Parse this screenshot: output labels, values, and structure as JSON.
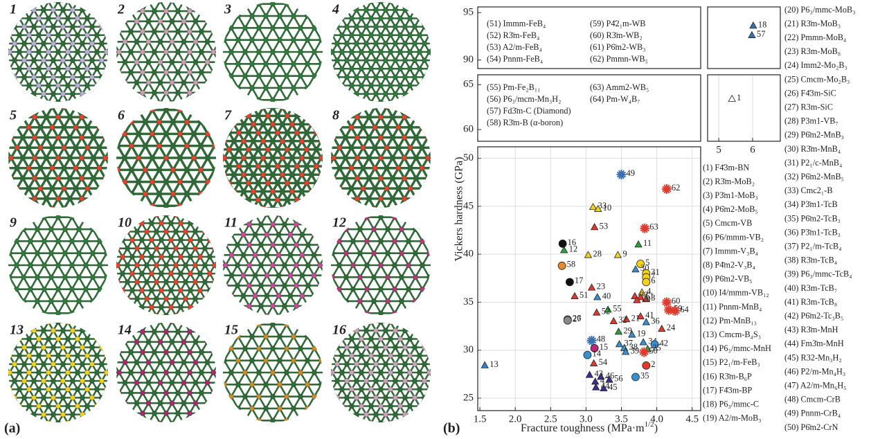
{
  "panel_labels": [
    "(a)",
    "(b)"
  ],
  "structures": [
    "1",
    "2",
    "3",
    "4",
    "5",
    "6",
    "7",
    "8",
    "9",
    "10",
    "11",
    "12",
    "13",
    "14",
    "15",
    "16"
  ],
  "structure_names": [
    "(1) F4̄3m-BN",
    "(2) R3̄m-MoB₂",
    "(3) P3̄m1-MoB₃",
    "(4) P6̄m2-MoB₅",
    "(5) Cmcm-VB",
    "(6) P6/mmm-VB₂",
    "(7) Immm-V₃B₄",
    "(8) P4̄m2-V₃B₄",
    "(9) P6̄m2-VB₅",
    "(10) I4/mmm-VB₁₂",
    "(11) Pnnm-MnB₄",
    "(12) Pm-MnB₁₃",
    "(13) Cmcm-B₄S₃",
    "(14) P6₃/mmc-MnH",
    "(15) P2₁/m-FeB₃",
    "(16) R3̄m-B₆P",
    "(17) F4̄3m-BP",
    "(18) P6₃/mmc-C",
    "(19) A2/m-MoB₃",
    "(20) P6₃/mmc-MoB₃",
    "(21) R3̄m-MoB₃",
    "(22) Pmmn-MoB₄",
    "(23) R3m-MoB₈",
    "(24) Imm2-Mo₂B₃",
    "(25) Cmcm-Mo₂B₃",
    "(26) F4̄3m-SiC",
    "(27) R3m-SiC",
    "(28) P3m1-VB₇",
    "(29) P6̄m2-MnB₃",
    "(30) R3̄m-MnB₄",
    "(31) P2₁/c-MnB₄",
    "(32) P6̄m2-MnB₅",
    "(33) Cmc2₁-B",
    "(34) P3̄m1-TcB",
    "(35) P6̄m2-TcB₃",
    "(36) P3̄m1-TcB₃",
    "(37) P2₁/m-TcB₄",
    "(38) R3̄m-TcB₄",
    "(39) P6₃/mmc-TcB₄",
    "(40) R3m-TcB₇",
    "(41) R3m-TcB₈",
    "(42) P6̄m2-Tc₃B₅",
    "(43) R3̄m-MnH",
    "(44) Fm3̄m-MnH",
    "(45) R32-Mn₃H₂",
    "(46) P2/m-Mn₄H₃",
    "(47) A2/m-Mn₆H₅",
    "(48) Cmcm-CrB",
    "(49) Pnnm-CrB₄",
    "(50) P6̄m2-CrN",
    "(51) Immm-FeB₄",
    "(52) R3̄m-FeB₄",
    "(53) A2/m-FeB₄",
    "(54) Pnnm-FeB₄",
    "(55) Pm-Fe₂B₁₁",
    "(56) P6₃/mcm-Mn₃H₂",
    "(57) Fd3̄m-C (Diamond)",
    "(58) R3̄m-B (α-boron)",
    "(59) P4̄2₁m-WB",
    "(60) R3̄m-WB₂",
    "(61) P6̄m2-WB₃",
    "(62) Pmmn-WB₅",
    "(63) Amm2-WB₅",
    "(64) Pm-W₄B₇"
  ],
  "chart_data": [
    {
      "type": "scatter",
      "xlabel": [
        "Fracture toughness (MPa·m",
        "1/2",
        ")"
      ],
      "ylabel": "Vickers hardness (GPa)",
      "xlim": [
        1.47,
        4.62
      ],
      "xticks": [
        1.5,
        {
          "value": 2,
          "label": "2.0"
        },
        2.5,
        {
          "value": 3,
          "label": "3.0"
        },
        3.5,
        {
          "value": 4,
          "label": "4.0"
        },
        4.5
      ],
      "ylim": [
        23.7,
        51.2
      ],
      "yticks": [
        25,
        30,
        35,
        40,
        45,
        50
      ],
      "grid": true,
      "points": [
        {
          "label": "49",
          "x": 3.5,
          "y": 48.3,
          "marker": "star",
          "color": "#3a6fb0"
        },
        {
          "label": "62",
          "x": 4.14,
          "y": 46.8,
          "marker": "star",
          "color": "#e03a2f"
        },
        {
          "label": "33",
          "x": 3.1,
          "y": 44.9,
          "marker": "triangle",
          "color": "#f2d21b"
        },
        {
          "label": "10",
          "x": 3.17,
          "y": 44.7,
          "marker": "triangle",
          "color": "#f2d21b"
        },
        {
          "label": "53",
          "x": 3.12,
          "y": 42.8,
          "marker": "triangle",
          "color": "#e03a2f"
        },
        {
          "label": "63",
          "x": 3.83,
          "y": 42.7,
          "marker": "star",
          "color": "#e03a2f"
        },
        {
          "label": "11",
          "x": 3.74,
          "y": 41.0,
          "marker": "triangle",
          "color": "#2e9e3e"
        },
        {
          "label": "16",
          "x": 2.67,
          "y": 41.1,
          "marker": "circle",
          "color": "#111111"
        },
        {
          "label": "12",
          "x": 2.69,
          "y": 40.4,
          "marker": "triangle",
          "color": "#2e9e3e"
        },
        {
          "label": "28",
          "x": 3.03,
          "y": 39.9,
          "marker": "triangle",
          "color": "#f2d21b"
        },
        {
          "label": "9",
          "x": 3.45,
          "y": 39.9,
          "marker": "triangle",
          "color": "#f2d21b"
        },
        {
          "label": "5",
          "x": 3.77,
          "y": 39.0,
          "marker": "circle",
          "color": "#f2d21b"
        },
        {
          "label": "58",
          "x": 2.66,
          "y": 38.8,
          "marker": "circle",
          "color": "#e8892a"
        },
        {
          "label": "30",
          "x": 3.7,
          "y": 38.4,
          "marker": "triangle",
          "color": "#3a8fd0"
        },
        {
          "label": "31",
          "x": 3.85,
          "y": 38.0,
          "marker": "circle",
          "color": "#f2d21b"
        },
        {
          "label": "7",
          "x": 3.85,
          "y": 37.6,
          "marker": "circle",
          "color": "#f2d21b"
        },
        {
          "label": "6",
          "x": 3.85,
          "y": 37.1,
          "marker": "circle",
          "color": "#f2d21b"
        },
        {
          "label": "17",
          "x": 2.77,
          "y": 37.1,
          "marker": "circle",
          "color": "#111111"
        },
        {
          "label": "23",
          "x": 3.08,
          "y": 36.5,
          "marker": "triangle",
          "color": "#e03a2f"
        },
        {
          "label": "51",
          "x": 2.84,
          "y": 35.6,
          "marker": "triangle",
          "color": "#e03a2f"
        },
        {
          "label": "40",
          "x": 3.16,
          "y": 35.5,
          "marker": "triangle",
          "color": "#3a8fd0"
        },
        {
          "label": "4",
          "x": 3.79,
          "y": 36.0,
          "marker": "triangle",
          "color": "#f2d21b"
        },
        {
          "label": "60",
          "x": 4.14,
          "y": 35.0,
          "marker": "star",
          "color": "#e03a2f"
        },
        {
          "label": "22",
          "x": 3.69,
          "y": 35.6,
          "marker": "triangle",
          "color": "#e03a2f"
        },
        {
          "label": "61",
          "x": 3.77,
          "y": 35.5,
          "marker": "triangle",
          "color": "#e03a2f"
        },
        {
          "label": "3",
          "x": 3.85,
          "y": 35.3,
          "marker": "triangle",
          "color": "#e03a2f"
        },
        {
          "label": "20",
          "x": 3.72,
          "y": 35.2,
          "marker": "triangle",
          "color": "#e03a2f"
        },
        {
          "label": "59",
          "x": 4.17,
          "y": 34.2,
          "marker": "star",
          "color": "#e03a2f"
        },
        {
          "label": "64",
          "x": 4.26,
          "y": 34.1,
          "marker": "star",
          "color": "#e03a2f"
        },
        {
          "label": "41",
          "x": 3.77,
          "y": 33.5,
          "marker": "triangle",
          "color": "#e03a2f"
        },
        {
          "label": "55",
          "x": 3.31,
          "y": 34.2,
          "marker": "triangle",
          "color": "#2e9e3e"
        },
        {
          "label": "26",
          "x": 2.74,
          "y": 33.2,
          "marker": "circle",
          "color": "#8a8a8a"
        },
        {
          "label": "27",
          "x": 2.74,
          "y": 33.1,
          "marker": "circle",
          "color": "#8a8a8a"
        },
        {
          "label": "52",
          "x": 3.15,
          "y": 33.9,
          "marker": "triangle",
          "color": "#e03a2f"
        },
        {
          "label": "21",
          "x": 3.57,
          "y": 33.2,
          "marker": "triangle",
          "color": "#e03a2f"
        },
        {
          "label": "32",
          "x": 3.39,
          "y": 33.0,
          "marker": "triangle",
          "color": "#e03a2f"
        },
        {
          "label": "36",
          "x": 3.85,
          "y": 32.9,
          "marker": "triangle",
          "color": "#3a8fd0"
        },
        {
          "label": "24",
          "x": 4.07,
          "y": 32.2,
          "marker": "triangle",
          "color": "#e03a2f"
        },
        {
          "label": "19",
          "x": 3.65,
          "y": 31.6,
          "marker": "triangle",
          "color": "#3a8fd0"
        },
        {
          "label": "29",
          "x": 3.46,
          "y": 31.9,
          "marker": "triangle",
          "color": "#2e9e3e"
        },
        {
          "label": "48",
          "x": 3.08,
          "y": 31.0,
          "marker": "star",
          "color": "#3a6fb0"
        },
        {
          "label": "37",
          "x": 3.47,
          "y": 30.6,
          "marker": "triangle",
          "color": "#3a8fd0"
        },
        {
          "label": "15",
          "x": 3.12,
          "y": 30.2,
          "marker": "circle",
          "color": "#c0277a"
        },
        {
          "label": "38",
          "x": 3.54,
          "y": 30.2,
          "marker": "triangle",
          "color": "#3a8fd0"
        },
        {
          "label": "34",
          "x": 3.81,
          "y": 30.8,
          "marker": "triangle",
          "color": "#3a8fd0"
        },
        {
          "label": "42",
          "x": 3.97,
          "y": 30.6,
          "marker": "circle",
          "color": "#3a8fd0"
        },
        {
          "label": "25",
          "x": 3.87,
          "y": 30.1,
          "marker": "triangle",
          "color": "#2e9e3e"
        },
        {
          "label": "50",
          "x": 3.82,
          "y": 29.8,
          "marker": "star",
          "color": "#e03a2f"
        },
        {
          "label": "14",
          "x": 3.02,
          "y": 29.5,
          "marker": "circle",
          "color": "#3a8fd0"
        },
        {
          "label": "2",
          "x": 3.85,
          "y": 28.4,
          "marker": "circle",
          "color": "#e03a2f"
        },
        {
          "label": "39",
          "x": 3.56,
          "y": 29.8,
          "marker": "triangle",
          "color": "#3a8fd0"
        },
        {
          "label": "54",
          "x": 3.11,
          "y": 28.6,
          "marker": "triangle",
          "color": "#e03a2f"
        },
        {
          "label": "35",
          "x": 3.7,
          "y": 27.2,
          "marker": "circle",
          "color": "#3a8fd0"
        },
        {
          "label": "43",
          "x": 3.05,
          "y": 27.4,
          "marker": "triangle",
          "color": "#3a2f8c"
        },
        {
          "label": "46",
          "x": 3.21,
          "y": 27.2,
          "marker": "triangle",
          "color": "#3a2f8c"
        },
        {
          "label": "47",
          "x": 3.13,
          "y": 26.7,
          "marker": "triangle",
          "color": "#3a2f8c"
        },
        {
          "label": "56",
          "x": 3.33,
          "y": 26.9,
          "marker": "triangle",
          "color": "#3a2f8c"
        },
        {
          "label": "44",
          "x": 3.14,
          "y": 26.1,
          "marker": "triangle",
          "color": "#3a2f8c"
        },
        {
          "label": "45",
          "x": 3.25,
          "y": 26.0,
          "marker": "triangle",
          "color": "#3a2f8c"
        },
        {
          "label": "13",
          "x": 1.57,
          "y": 28.4,
          "marker": "triangle",
          "color": "#3a7dc0"
        }
      ]
    },
    {
      "type": "scatter",
      "ylim": [
        89.1,
        95.6
      ],
      "yticks": [
        90,
        95
      ],
      "grid": false
    },
    {
      "type": "scatter",
      "ylim": [
        58.7,
        66.1
      ],
      "yticks": [
        60,
        65
      ],
      "grid": false
    },
    {
      "type": "scatter",
      "xlim": [
        4.67,
        6.82
      ],
      "ylim": [
        89.1,
        95.6
      ],
      "grid": false,
      "points": [
        {
          "label": "18",
          "x": 6.02,
          "y": 93.6,
          "marker": "triangle",
          "color": "#3a6fb0"
        },
        {
          "label": "57",
          "x": 5.98,
          "y": 92.6,
          "marker": "triangle",
          "color": "#3a6fb0"
        }
      ]
    },
    {
      "type": "scatter",
      "xlim": [
        4.67,
        6.82
      ],
      "xticks": [
        5,
        6
      ],
      "ylim": [
        58.7,
        66.1
      ],
      "grid": true,
      "points": [
        {
          "label": "1",
          "x": 5.39,
          "y": 63.4,
          "marker": "triangle",
          "color": "#ffffff"
        }
      ]
    }
  ]
}
